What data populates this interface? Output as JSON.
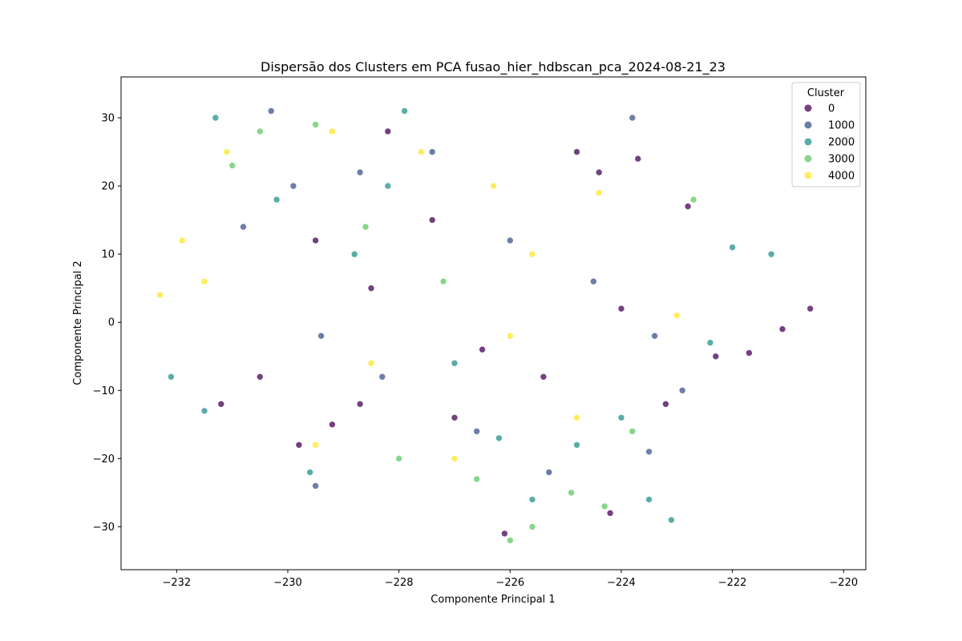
{
  "chart_data": {
    "type": "scatter",
    "title": "Dispersão dos Clusters em PCA fusao_hier_hdbscan_pca_2024-08-21_23",
    "xlabel": "Componente Principal 1",
    "ylabel": "Componente Principal 2",
    "xlim": [
      -233.0,
      -219.6
    ],
    "ylim": [
      -36.3,
      36.0
    ],
    "x_ticks": [
      -232,
      -230,
      -228,
      -226,
      -224,
      -222,
      -220
    ],
    "x_tick_labels": [
      "−232",
      "−230",
      "−228",
      "−226",
      "−224",
      "−222",
      "−220"
    ],
    "y_ticks": [
      -30,
      -20,
      -10,
      0,
      10,
      20,
      30
    ],
    "y_tick_labels": [
      "−30",
      "−20",
      "−10",
      "0",
      "10",
      "20",
      "30"
    ],
    "grid": false,
    "legend": {
      "title": "Cluster",
      "position": "top-right",
      "entries": [
        "0",
        "1000",
        "2000",
        "3000",
        "4000"
      ]
    },
    "colormap": "viridis",
    "series": [
      {
        "name": "0",
        "color": "#440154",
        "points": [
          [
            -229.5,
            12
          ],
          [
            -229.2,
            -15
          ],
          [
            -228.5,
            5
          ],
          [
            -228.2,
            28
          ],
          [
            -227.4,
            15
          ],
          [
            -227.0,
            -14
          ],
          [
            -226.5,
            -4
          ],
          [
            -225.4,
            -8
          ],
          [
            -224.8,
            25
          ],
          [
            -224.4,
            22
          ],
          [
            -224.0,
            2
          ],
          [
            -223.7,
            24
          ],
          [
            -223.2,
            -12
          ],
          [
            -222.8,
            17
          ],
          [
            -222.3,
            -5
          ],
          [
            -221.7,
            -4.5
          ],
          [
            -221.1,
            -1
          ],
          [
            -220.6,
            2
          ],
          [
            -231.2,
            -12
          ],
          [
            -230.5,
            -8
          ],
          [
            -229.8,
            -18
          ],
          [
            -228.7,
            -12
          ],
          [
            -226.1,
            -31
          ],
          [
            -224.2,
            -28
          ]
        ]
      },
      {
        "name": "1000",
        "color": "#3b528b",
        "points": [
          [
            -230.3,
            31
          ],
          [
            -229.9,
            20
          ],
          [
            -229.4,
            -2
          ],
          [
            -228.7,
            22
          ],
          [
            -228.3,
            -8
          ],
          [
            -227.4,
            25
          ],
          [
            -226.6,
            -16
          ],
          [
            -226.0,
            12
          ],
          [
            -225.3,
            -22
          ],
          [
            -224.5,
            6
          ],
          [
            -223.8,
            30
          ],
          [
            -223.4,
            -2
          ],
          [
            -222.9,
            -10
          ],
          [
            -223.5,
            -19
          ],
          [
            -230.8,
            14
          ],
          [
            -229.5,
            -24
          ]
        ]
      },
      {
        "name": "2000",
        "color": "#21918c",
        "points": [
          [
            -231.3,
            30
          ],
          [
            -230.2,
            18
          ],
          [
            -229.6,
            -22
          ],
          [
            -228.8,
            10
          ],
          [
            -228.2,
            20
          ],
          [
            -227.9,
            31
          ],
          [
            -227.0,
            -6
          ],
          [
            -226.2,
            -17
          ],
          [
            -225.6,
            -26
          ],
          [
            -224.8,
            -18
          ],
          [
            -224.0,
            -14
          ],
          [
            -223.5,
            -26
          ],
          [
            -223.1,
            -29
          ],
          [
            -222.4,
            -3
          ],
          [
            -222.0,
            11
          ],
          [
            -221.3,
            10
          ],
          [
            -232.1,
            -8
          ],
          [
            -231.5,
            -13
          ]
        ]
      },
      {
        "name": "3000",
        "color": "#5ec962",
        "points": [
          [
            -230.5,
            28
          ],
          [
            -229.5,
            29
          ],
          [
            -228.6,
            14
          ],
          [
            -228.0,
            -20
          ],
          [
            -227.2,
            6
          ],
          [
            -226.6,
            -23
          ],
          [
            -226.0,
            -32
          ],
          [
            -225.6,
            -30
          ],
          [
            -224.9,
            -25
          ],
          [
            -224.3,
            -27
          ],
          [
            -223.8,
            -16
          ],
          [
            -222.7,
            18
          ],
          [
            -231.0,
            23
          ]
        ]
      },
      {
        "name": "4000",
        "color": "#fde725",
        "points": [
          [
            -231.9,
            12
          ],
          [
            -231.5,
            6
          ],
          [
            -231.1,
            25
          ],
          [
            -229.5,
            -18
          ],
          [
            -229.2,
            28
          ],
          [
            -228.5,
            -6
          ],
          [
            -227.6,
            25
          ],
          [
            -227.0,
            -20
          ],
          [
            -226.3,
            20
          ],
          [
            -226.0,
            -2
          ],
          [
            -225.6,
            10
          ],
          [
            -224.8,
            -14
          ],
          [
            -224.4,
            19
          ],
          [
            -223.0,
            1
          ],
          [
            -232.3,
            4
          ]
        ]
      }
    ]
  }
}
